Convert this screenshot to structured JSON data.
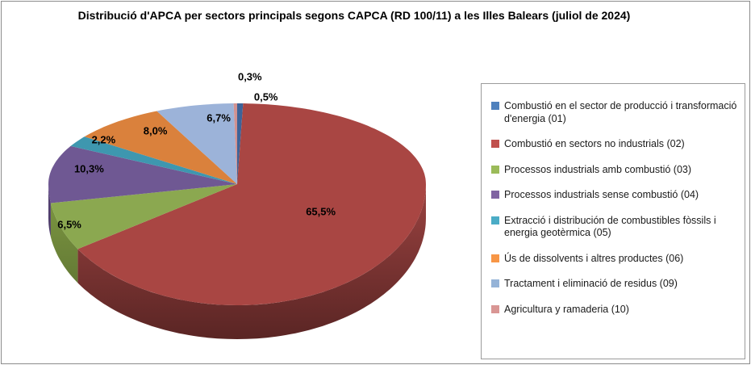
{
  "chart_data": {
    "type": "pie",
    "title": "Distribució d'APCA per sectors principals segons CAPCA (RD 100/11) a les Illes Balears (juliol de 2024)",
    "legend_position": "right",
    "style": "3d-pie",
    "background_color": "#ffffff",
    "frame_border_color": "#8c8c8c",
    "legend_border_color": "#9b9b9b",
    "slices": [
      {
        "label": "Combustió en el sector de producció i transformació d'energia (01)",
        "value": 0.5,
        "display": "0,5%",
        "color": "#3D6399",
        "legend_color": "#4F81BD"
      },
      {
        "label": "Combustió en sectors no industrials (02)",
        "value": 65.5,
        "display": "65,5%",
        "color": "#A94643",
        "legend_color": "#C0504D"
      },
      {
        "label": "Processos industrials amb combustió (03)",
        "value": 6.5,
        "display": "6,5%",
        "color": "#8BA850",
        "legend_color": "#9BBB59"
      },
      {
        "label": "Processos industrials sense combustió (04)",
        "value": 10.3,
        "display": "10,3%",
        "color": "#6F5893",
        "legend_color": "#8064A2"
      },
      {
        "label": "Extracció i distribución de combustibles fòssils i energia geotèrmica (05)",
        "value": 2.2,
        "display": "2,2%",
        "color": "#3E97AF",
        "legend_color": "#4BACC6"
      },
      {
        "label": "Ús de dissolvents i altres productes (06)",
        "value": 8.0,
        "display": "8,0%",
        "color": "#DA813C",
        "legend_color": "#F79646"
      },
      {
        "label": "Tractament i eliminació de residus (09)",
        "value": 6.7,
        "display": "6,7%",
        "color": "#9CB3D9",
        "legend_color": "#95B3D7"
      },
      {
        "label": "Agricultura y ramaderia (10)",
        "value": 0.3,
        "display": "0,3%",
        "color": "#D29291",
        "legend_color": "#D99694"
      }
    ]
  }
}
